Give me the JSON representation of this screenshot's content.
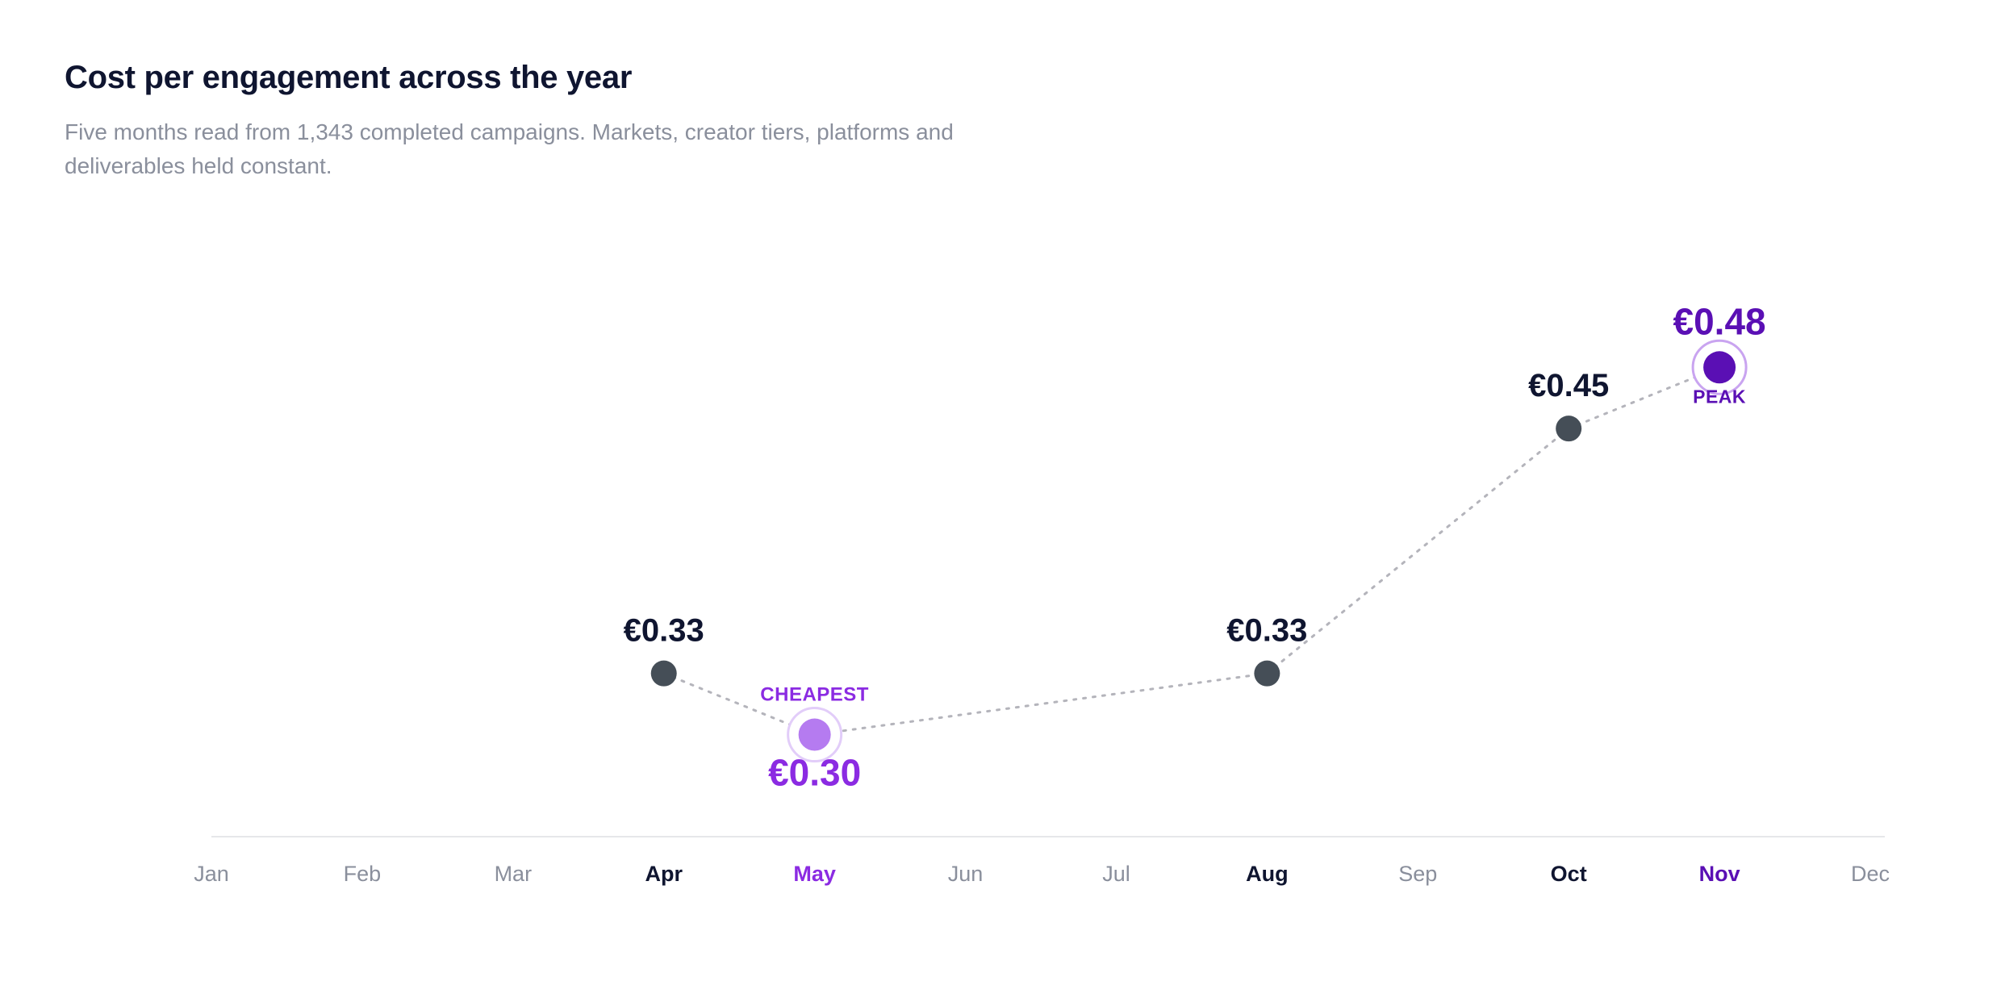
{
  "header": {
    "title": "Cost per engagement across the year",
    "subtitle": "Five months read from 1,343 completed campaigns. Markets, creator tiers, platforms and deliverables held constant."
  },
  "colors": {
    "normal_point": "#454e57",
    "low_point": "#b57bf0",
    "low_accent": "#8b2be2",
    "high_point": "#5a0fb4",
    "high_accent": "#5a0fb4",
    "connector": "#b4b4bb",
    "label_dark": "#0f1530",
    "label_muted": "#8a8f9c"
  },
  "chart_data": {
    "type": "line",
    "title": "Cost per engagement across the year",
    "categories": [
      "Jan",
      "Feb",
      "Mar",
      "Apr",
      "May",
      "Jun",
      "Jul",
      "Aug",
      "Sep",
      "Oct",
      "Nov",
      "Dec"
    ],
    "points": [
      {
        "month": "Apr",
        "value": 0.33,
        "label": "€0.33",
        "role": "normal"
      },
      {
        "month": "May",
        "value": 0.3,
        "label": "€0.30",
        "role": "low",
        "tag": "CHEAPEST"
      },
      {
        "month": "Aug",
        "value": 0.33,
        "label": "€0.33",
        "role": "normal"
      },
      {
        "month": "Oct",
        "value": 0.45,
        "label": "€0.45",
        "role": "normal"
      },
      {
        "month": "Nov",
        "value": 0.48,
        "label": "€0.48",
        "role": "high",
        "tag": "PEAK"
      }
    ],
    "ylim": [
      0.25,
      0.49
    ],
    "line_style": "dotted",
    "grid": false
  }
}
